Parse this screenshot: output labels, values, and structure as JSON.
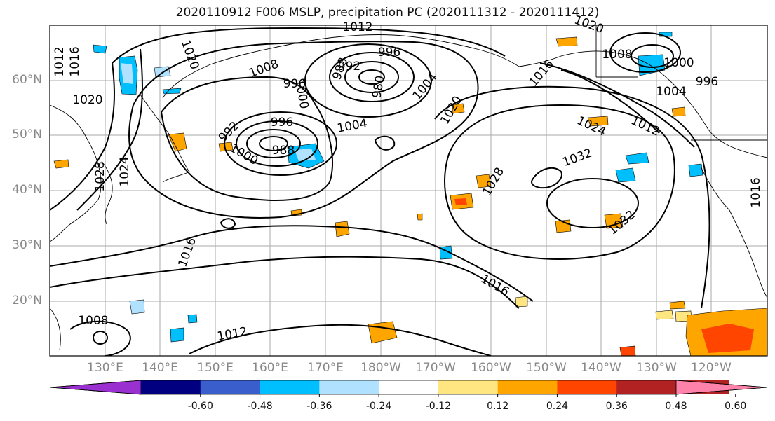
{
  "title": "2020110912 F006 MSLP, precipitation PC (2020111312 - 2020111412)",
  "lat_labels": [
    "60°N",
    "50°N",
    "40°N",
    "30°N",
    "20°N"
  ],
  "lon_labels": [
    "130°E",
    "140°E",
    "150°E",
    "160°E",
    "170°E",
    "180°W",
    "170°W",
    "160°W",
    "150°W",
    "140°W",
    "130°W",
    "120°W"
  ],
  "colorbar": {
    "colors": [
      "#9b30d0",
      "#000080",
      "#3a5fcd",
      "#00bfff",
      "#b0e2ff",
      "#ffffff",
      "#ffe680",
      "#ffa500",
      "#ff4500",
      "#b22222",
      "#ff82ab"
    ],
    "tick_labels": [
      "-0.60",
      "-0.48",
      "-0.36",
      "-0.24",
      "-0.12",
      "0.12",
      "0.24",
      "0.36",
      "0.48",
      "0.60"
    ]
  },
  "isobar_labels": [
    "1012",
    "1020",
    "1016",
    "1012",
    "1020",
    "1020",
    "1008",
    "996",
    "992",
    "988",
    "980",
    "1000",
    "996",
    "1004",
    "1020",
    "1016",
    "1008",
    "1000",
    "996",
    "1004",
    "1024",
    "1012",
    "1032",
    "1028",
    "1032",
    "996",
    "992",
    "988",
    "1000",
    "1004",
    "1024",
    "1028",
    "1016",
    "1016",
    "1016",
    "1008",
    "1012"
  ]
}
